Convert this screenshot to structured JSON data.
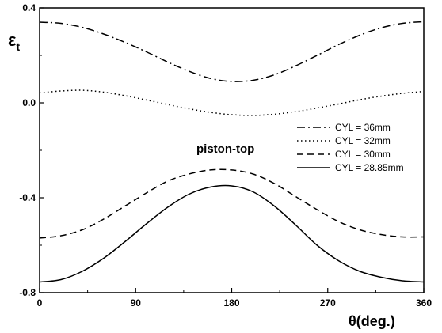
{
  "chart_data": {
    "type": "line",
    "title": "",
    "xlabel": "θ(deg.)",
    "ylabel": "εt",
    "ylabel_main": "ε",
    "ylabel_sub": "t",
    "xlim": [
      0,
      360
    ],
    "ylim": [
      -0.8,
      0.4
    ],
    "x_ticks": [
      0,
      90,
      180,
      270,
      360
    ],
    "x_tick_labels": [
      "0",
      "90",
      "180",
      "270",
      "360"
    ],
    "y_ticks": [
      0.4,
      0.0,
      -0.4,
      -0.8
    ],
    "y_tick_labels": [
      "0.4",
      "0.0",
      "-0.4",
      "-0.8"
    ],
    "grid": false,
    "legend_position": "right",
    "annotation": "piston-top",
    "series": [
      {
        "name": "CYL = 36mm",
        "style": "dashdot",
        "x": [
          0,
          20,
          40,
          60,
          80,
          100,
          120,
          140,
          160,
          180,
          200,
          220,
          240,
          260,
          280,
          300,
          320,
          340,
          360
        ],
        "y": [
          0.34,
          0.335,
          0.318,
          0.29,
          0.255,
          0.215,
          0.172,
          0.133,
          0.103,
          0.09,
          0.095,
          0.118,
          0.156,
          0.2,
          0.245,
          0.285,
          0.316,
          0.335,
          0.342
        ]
      },
      {
        "name": "CYL = 32mm",
        "style": "dotted",
        "x": [
          0,
          20,
          40,
          60,
          80,
          100,
          120,
          140,
          160,
          180,
          200,
          220,
          240,
          260,
          280,
          300,
          320,
          340,
          360
        ],
        "y": [
          0.042,
          0.05,
          0.053,
          0.045,
          0.03,
          0.012,
          -0.007,
          -0.025,
          -0.04,
          -0.05,
          -0.053,
          -0.048,
          -0.037,
          -0.022,
          -0.005,
          0.013,
          0.028,
          0.04,
          0.048
        ]
      },
      {
        "name": "CYL = 30mm",
        "style": "dashed",
        "x": [
          0,
          20,
          40,
          60,
          80,
          100,
          120,
          140,
          160,
          180,
          200,
          220,
          240,
          260,
          280,
          300,
          320,
          340,
          360
        ],
        "y": [
          -0.57,
          -0.56,
          -0.535,
          -0.49,
          -0.435,
          -0.38,
          -0.33,
          -0.3,
          -0.283,
          -0.283,
          -0.3,
          -0.34,
          -0.395,
          -0.45,
          -0.5,
          -0.535,
          -0.555,
          -0.565,
          -0.565
        ]
      },
      {
        "name": "CYL = 28.85mm",
        "style": "solid",
        "x": [
          0,
          20,
          40,
          60,
          80,
          100,
          120,
          140,
          160,
          180,
          200,
          220,
          240,
          260,
          280,
          300,
          320,
          340,
          360
        ],
        "y": [
          -0.755,
          -0.745,
          -0.71,
          -0.655,
          -0.585,
          -0.51,
          -0.44,
          -0.385,
          -0.355,
          -0.35,
          -0.375,
          -0.435,
          -0.515,
          -0.6,
          -0.665,
          -0.71,
          -0.735,
          -0.75,
          -0.755
        ]
      }
    ]
  }
}
